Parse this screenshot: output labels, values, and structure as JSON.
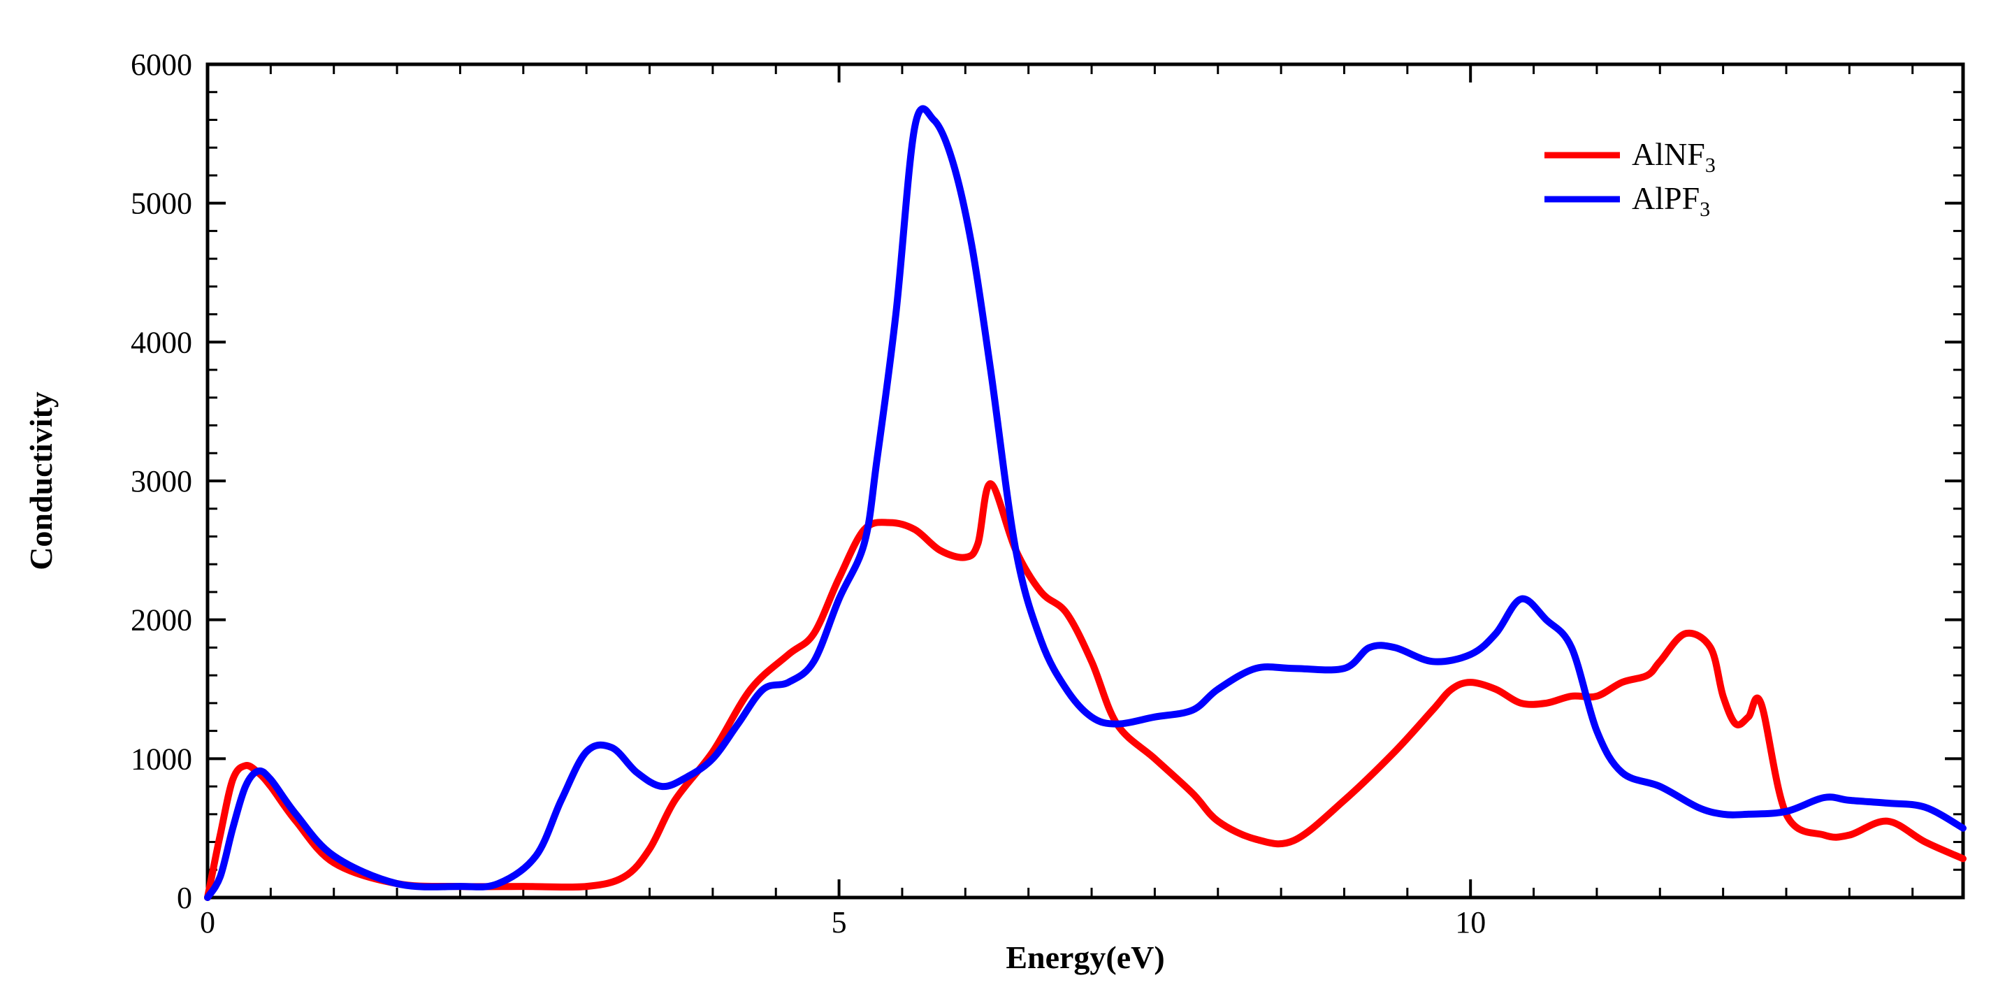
{
  "chart_data": {
    "type": "line",
    "xlabel": "Energy(eV)",
    "ylabel": "Conductivity",
    "xlim": [
      0,
      13.9
    ],
    "ylim": [
      0,
      6000
    ],
    "xticks": [
      0,
      5,
      10
    ],
    "xtick_labels": [
      "0",
      "5",
      "10"
    ],
    "yticks": [
      0,
      1000,
      2000,
      3000,
      4000,
      5000,
      6000
    ],
    "ytick_labels": [
      "0",
      "1000",
      "2000",
      "3000",
      "4000",
      "5000",
      "6000"
    ],
    "grid": false,
    "legend_position": "top-right",
    "series": [
      {
        "name": "AlNF3",
        "label_main": "AlNF",
        "label_sub": "3",
        "color": "#ff0000",
        "x": [
          0,
          0.1,
          0.2,
          0.3,
          0.4,
          0.5,
          0.7,
          1.0,
          1.5,
          2.0,
          2.5,
          3.0,
          3.3,
          3.5,
          3.7,
          4.0,
          4.3,
          4.6,
          4.8,
          5.0,
          5.2,
          5.4,
          5.6,
          5.8,
          6.0,
          6.1,
          6.2,
          6.4,
          6.6,
          6.8,
          7.0,
          7.2,
          7.5,
          7.8,
          8.0,
          8.3,
          8.6,
          9.0,
          9.4,
          9.7,
          9.85,
          10.0,
          10.2,
          10.4,
          10.6,
          10.8,
          11.0,
          11.2,
          11.4,
          11.5,
          11.7,
          11.9,
          12.0,
          12.1,
          12.2,
          12.3,
          12.5,
          12.8,
          13.0,
          13.3,
          13.6,
          13.9
        ],
        "values": [
          0,
          450,
          850,
          950,
          900,
          800,
          550,
          250,
          100,
          80,
          80,
          80,
          150,
          350,
          700,
          1050,
          1500,
          1750,
          1900,
          2300,
          2650,
          2700,
          2650,
          2500,
          2450,
          2550,
          2980,
          2500,
          2200,
          2050,
          1700,
          1250,
          1000,
          750,
          550,
          420,
          410,
          700,
          1050,
          1350,
          1500,
          1550,
          1500,
          1400,
          1400,
          1450,
          1450,
          1550,
          1600,
          1700,
          1900,
          1800,
          1450,
          1250,
          1300,
          1400,
          600,
          450,
          450,
          550,
          400,
          280
        ]
      },
      {
        "name": "AlPF3",
        "label_main": "AlPF",
        "label_sub": "3",
        "color": "#0000ff",
        "x": [
          0,
          0.1,
          0.2,
          0.3,
          0.4,
          0.5,
          0.7,
          1.0,
          1.5,
          2.0,
          2.3,
          2.6,
          2.8,
          3.0,
          3.2,
          3.4,
          3.6,
          3.8,
          4.0,
          4.2,
          4.4,
          4.6,
          4.8,
          5.0,
          5.2,
          5.3,
          5.45,
          5.6,
          5.75,
          5.9,
          6.05,
          6.2,
          6.4,
          6.6,
          6.8,
          7.0,
          7.2,
          7.5,
          7.8,
          8.0,
          8.3,
          8.6,
          9.0,
          9.2,
          9.4,
          9.7,
          10.0,
          10.2,
          10.4,
          10.6,
          10.8,
          11.0,
          11.2,
          11.5,
          11.8,
          12.0,
          12.2,
          12.5,
          12.8,
          13.0,
          13.3,
          13.6,
          13.9
        ],
        "values": [
          0,
          150,
          500,
          800,
          910,
          850,
          600,
          300,
          100,
          80,
          100,
          300,
          700,
          1050,
          1080,
          900,
          800,
          870,
          1000,
          1250,
          1500,
          1550,
          1700,
          2150,
          2550,
          3150,
          4200,
          5550,
          5600,
          5300,
          4700,
          3800,
          2500,
          1850,
          1500,
          1300,
          1250,
          1300,
          1350,
          1500,
          1650,
          1650,
          1650,
          1800,
          1800,
          1700,
          1750,
          1900,
          2150,
          2000,
          1800,
          1200,
          900,
          800,
          650,
          600,
          600,
          620,
          720,
          700,
          680,
          650,
          500
        ]
      }
    ]
  }
}
